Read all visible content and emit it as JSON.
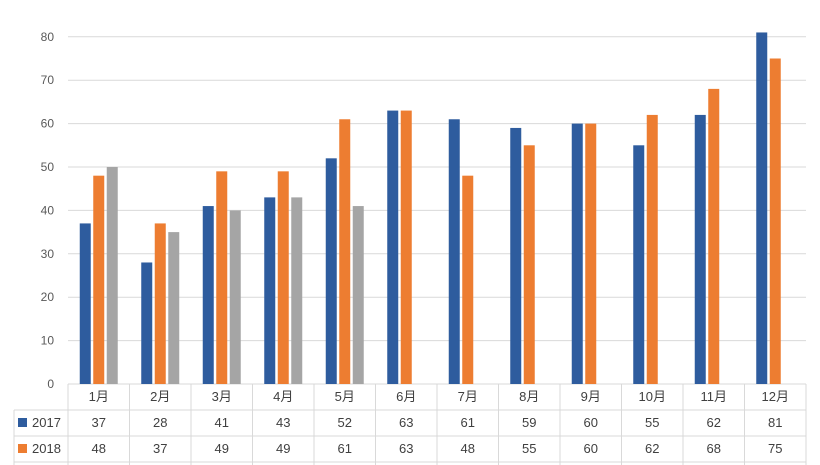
{
  "chart_data": {
    "type": "bar",
    "categories": [
      "1月",
      "2月",
      "3月",
      "4月",
      "5月",
      "6月",
      "7月",
      "8月",
      "9月",
      "10月",
      "11月",
      "12月"
    ],
    "series": [
      {
        "name": "2017",
        "color": "#2e5c9e",
        "values": [
          37,
          28,
          41,
          43,
          52,
          63,
          61,
          59,
          60,
          55,
          62,
          81
        ]
      },
      {
        "name": "2018",
        "color": "#ed7d31",
        "values": [
          48,
          37,
          49,
          49,
          61,
          63,
          48,
          55,
          60,
          62,
          68,
          75
        ]
      },
      {
        "name": "",
        "color": "#a5a5a5",
        "values": [
          50,
          35,
          40,
          43,
          41,
          null,
          null,
          null,
          null,
          null,
          null,
          null
        ]
      }
    ],
    "ylim": [
      0,
      85
    ],
    "yticks": [
      0,
      10,
      20,
      30,
      40,
      50,
      60,
      70,
      80
    ],
    "grid": true,
    "data_table": true
  }
}
